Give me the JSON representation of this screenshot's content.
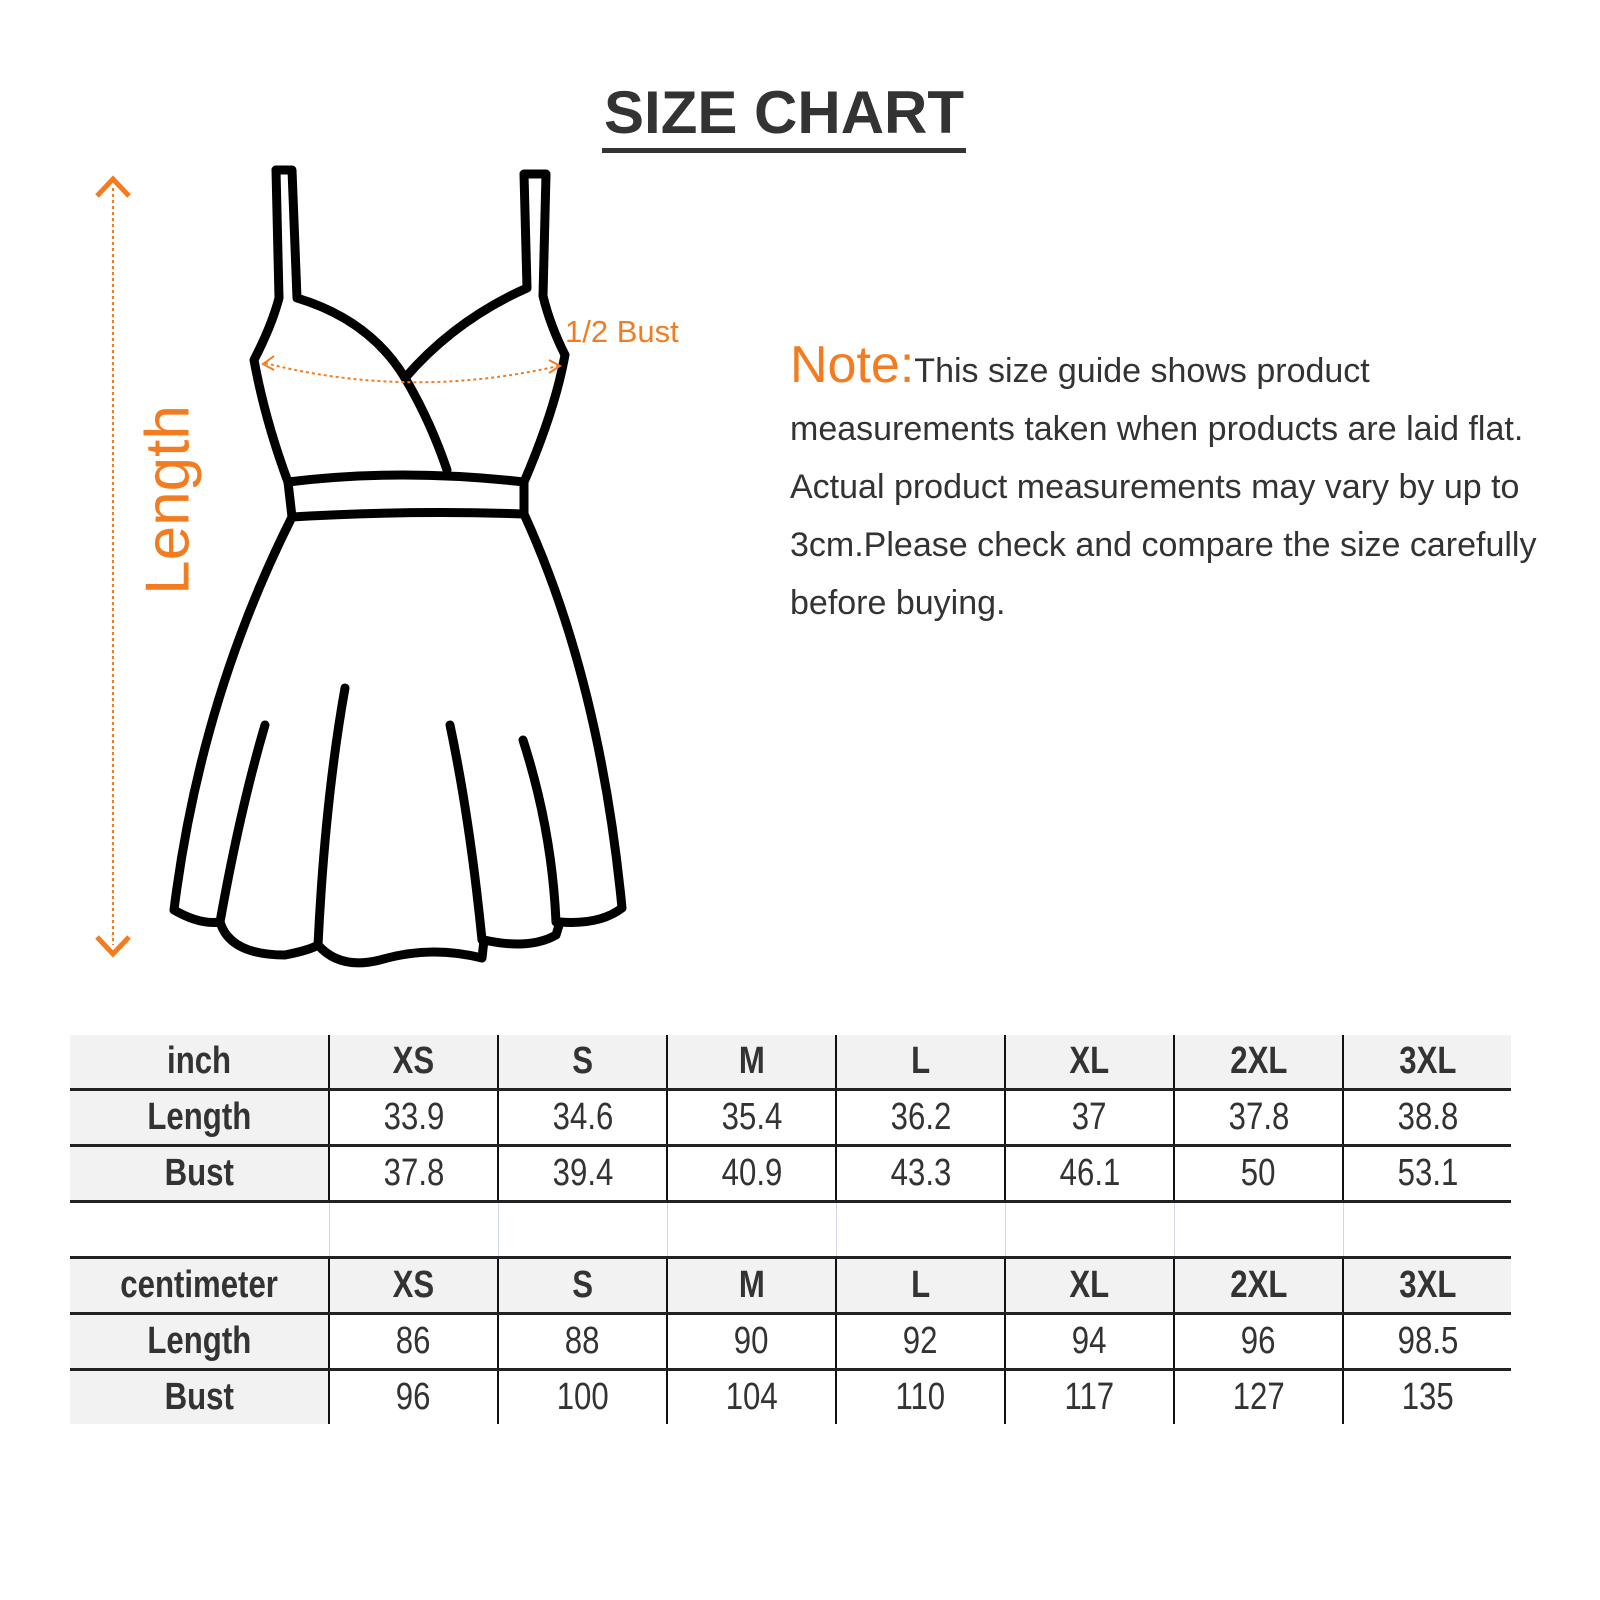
{
  "title": "SIZE CHART",
  "labels": {
    "length": "Length",
    "half_bust": "1/2 Bust"
  },
  "note": {
    "heading": "Note:",
    "text": "This size guide shows product measurements taken when products are laid flat. Actual product measurements may vary by up to 3cm.Please check and compare the size carefully before buying."
  },
  "colors": {
    "accent": "#f47c20",
    "text": "#333333",
    "header_bg": "#f2f2f2"
  },
  "inch_table": {
    "header": [
      "inch",
      "XS",
      "S",
      "M",
      "L",
      "XL",
      "2XL",
      "3XL"
    ],
    "rows": [
      [
        "Length",
        "33.9",
        "34.6",
        "35.4",
        "36.2",
        "37",
        "37.8",
        "38.8"
      ],
      [
        "Bust",
        "37.8",
        "39.4",
        "40.9",
        "43.3",
        "46.1",
        "50",
        "53.1"
      ]
    ]
  },
  "cm_table": {
    "header": [
      "centimeter",
      "XS",
      "S",
      "M",
      "L",
      "XL",
      "2XL",
      "3XL"
    ],
    "rows": [
      [
        "Length",
        "86",
        "88",
        "90",
        "92",
        "94",
        "96",
        "98.5"
      ],
      [
        "Bust",
        "96",
        "100",
        "104",
        "110",
        "117",
        "127",
        "135"
      ]
    ]
  }
}
